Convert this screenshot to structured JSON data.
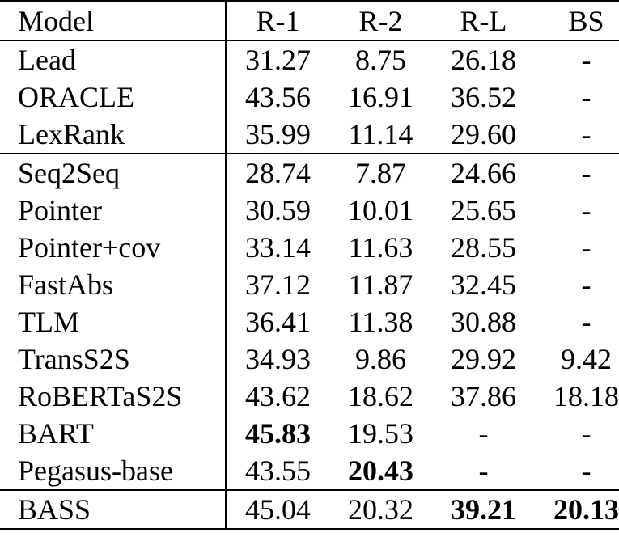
{
  "table": {
    "header": {
      "model_label": "Model",
      "metric_labels": [
        "R-1",
        "R-2",
        "R-L",
        "BS"
      ]
    },
    "groups": [
      [
        {
          "model": "Lead",
          "values": [
            "31.27",
            "8.75",
            "26.18",
            "-"
          ],
          "bold": []
        },
        {
          "model": "ORACLE",
          "values": [
            "43.56",
            "16.91",
            "36.52",
            "-"
          ],
          "bold": []
        },
        {
          "model": "LexRank",
          "values": [
            "35.99",
            "11.14",
            "29.60",
            "-"
          ],
          "bold": []
        }
      ],
      [
        {
          "model": "Seq2Seq",
          "values": [
            "28.74",
            "7.87",
            "24.66",
            "-"
          ],
          "bold": []
        },
        {
          "model": "Pointer",
          "values": [
            "30.59",
            "10.01",
            "25.65",
            "-"
          ],
          "bold": []
        },
        {
          "model": "Pointer+cov",
          "values": [
            "33.14",
            "11.63",
            "28.55",
            "-"
          ],
          "bold": []
        },
        {
          "model": "FastAbs",
          "values": [
            "37.12",
            "11.87",
            "32.45",
            "-"
          ],
          "bold": []
        },
        {
          "model": "TLM",
          "values": [
            "36.41",
            "11.38",
            "30.88",
            "-"
          ],
          "bold": []
        },
        {
          "model": "TransS2S",
          "values": [
            "34.93",
            "9.86",
            "29.92",
            "9.42"
          ],
          "bold": []
        },
        {
          "model": "RoBERTaS2S",
          "values": [
            "43.62",
            "18.62",
            "37.86",
            "18.18"
          ],
          "bold": []
        },
        {
          "model": "BART",
          "values": [
            "45.83",
            "19.53",
            "-",
            "-"
          ],
          "bold": [
            0
          ]
        },
        {
          "model": "Pegasus-base",
          "values": [
            "43.55",
            "20.43",
            "-",
            "-"
          ],
          "bold": [
            1
          ]
        }
      ],
      [
        {
          "model": "BASS",
          "values": [
            "45.04",
            "20.32",
            "39.21",
            "20.13"
          ],
          "bold": [
            2,
            3
          ]
        }
      ]
    ],
    "colors": {
      "text": "#000000",
      "background": "#ffffff",
      "rule": "#000000"
    }
  }
}
